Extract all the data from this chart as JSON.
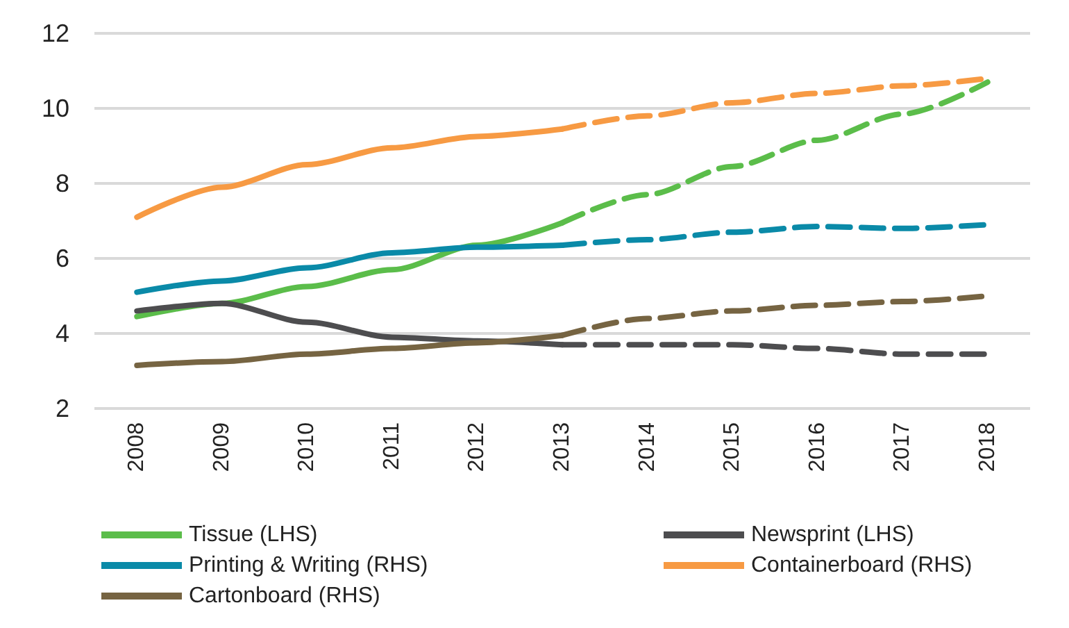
{
  "chart_data": {
    "type": "line",
    "categories": [
      "2008",
      "2009",
      "2010",
      "2011",
      "2012",
      "2013",
      "2014",
      "2015",
      "2016",
      "2017",
      "2018"
    ],
    "ylim": [
      2,
      12
    ],
    "yticks": [
      2,
      4,
      6,
      8,
      10,
      12
    ],
    "grid": "y",
    "legend": "bottom",
    "marker": "none",
    "series": [
      {
        "name": "Tissue (LHS)",
        "color": "#5bbd4a",
        "line_style": "solid",
        "values": [
          4.45,
          4.8,
          5.25,
          5.7,
          6.35,
          6.95,
          null,
          null,
          null,
          null,
          null
        ]
      },
      {
        "name": "Newsprint (LHS)",
        "color": "#4d4d4f",
        "line_style": "solid",
        "values": [
          4.6,
          4.8,
          4.3,
          3.9,
          3.8,
          3.7,
          null,
          null,
          null,
          null,
          null
        ]
      },
      {
        "name": "Printing & Writing (RHS)",
        "color": "#0a8aa8",
        "line_style": "solid",
        "values": [
          5.1,
          5.4,
          5.75,
          6.15,
          6.3,
          6.35,
          null,
          null,
          null,
          null,
          null
        ]
      },
      {
        "name": "Containerboard (RHS)",
        "color": "#f79a43",
        "line_style": "solid",
        "values": [
          7.1,
          7.9,
          8.5,
          8.95,
          9.25,
          9.45,
          null,
          null,
          null,
          null,
          null
        ]
      },
      {
        "name": "Cartonboard (RHS)",
        "color": "#766442",
        "line_style": "solid",
        "values": [
          3.15,
          3.25,
          3.45,
          3.6,
          3.75,
          3.95,
          null,
          null,
          null,
          null,
          null
        ]
      },
      {
        "color": "#5bbd4a",
        "line_style": "dashed",
        "values": [
          null,
          null,
          null,
          null,
          null,
          6.95,
          7.7,
          8.45,
          9.15,
          9.85,
          10.7
        ]
      },
      {
        "color": "#4d4d4f",
        "line_style": "dashed",
        "values": [
          null,
          null,
          null,
          null,
          null,
          3.7,
          3.7,
          3.7,
          3.6,
          3.45,
          3.45
        ]
      },
      {
        "color": "#0a8aa8",
        "line_style": "dashed",
        "values": [
          null,
          null,
          null,
          null,
          null,
          6.35,
          6.5,
          6.7,
          6.85,
          6.8,
          6.9
        ]
      },
      {
        "color": "#f79a43",
        "line_style": "dashed",
        "values": [
          null,
          null,
          null,
          null,
          null,
          9.45,
          9.8,
          10.15,
          10.4,
          10.6,
          10.8
        ]
      },
      {
        "color": "#766442",
        "line_style": "dashed",
        "values": [
          null,
          null,
          null,
          null,
          null,
          3.95,
          4.4,
          4.6,
          4.75,
          4.85,
          5.0
        ]
      }
    ]
  }
}
